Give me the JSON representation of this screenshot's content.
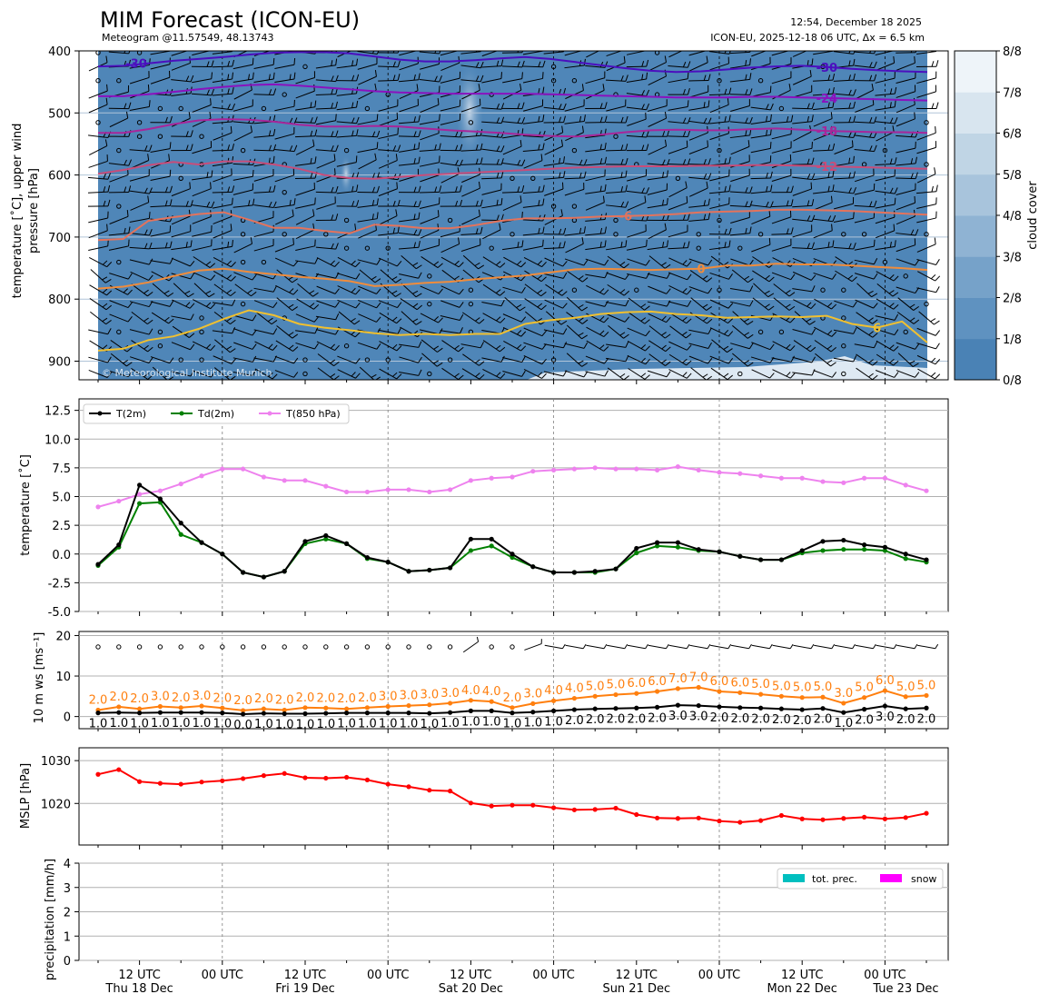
{
  "header": {
    "title": "MIM Forecast (ICON-EU)",
    "subtitle": "Meteogram @11.57549, 48.13743",
    "issued": "12:54, December 18 2025",
    "model_info": "ICON-EU, 2025-12-18 06 UTC, Δx = 6.5 km"
  },
  "colors": {
    "t2m": "#000000",
    "td2m": "#008000",
    "t850": "#ee82ee",
    "gust": "#ff7f0e",
    "mslp": "#ff0000",
    "tot_prec": "#00bfbf",
    "snow": "#ff00ff",
    "cloud_base": "#4f86b8"
  },
  "x_axis": {
    "ticks": [
      {
        "t": 6,
        "line1": "12 UTC",
        "line2": "Thu 18 Dec"
      },
      {
        "t": 18,
        "line1": "00 UTC",
        "line2": ""
      },
      {
        "t": 30,
        "line1": "12 UTC",
        "line2": "Fri 19 Dec"
      },
      {
        "t": 42,
        "line1": "00 UTC",
        "line2": ""
      },
      {
        "t": 54,
        "line1": "12 UTC",
        "line2": "Sat 20 Dec"
      },
      {
        "t": 66,
        "line1": "00 UTC",
        "line2": ""
      },
      {
        "t": 78,
        "line1": "12 UTC",
        "line2": "Sun 21 Dec"
      },
      {
        "t": 90,
        "line1": "00 UTC",
        "line2": ""
      },
      {
        "t": 102,
        "line1": "12 UTC",
        "line2": "Mon 22 Dec"
      },
      {
        "t": 114,
        "line1": "00 UTC",
        "line2": "Tue 23 Dec"
      }
    ],
    "midnights": [
      18,
      42,
      66,
      90,
      114
    ]
  },
  "chart_data": [
    {
      "type": "contour",
      "panel": "upper",
      "ylabel": "temperature [˚C], upper wind\npressure [hPa]",
      "y_ticks": [
        400,
        500,
        600,
        700,
        800,
        900
      ],
      "ylim": [
        930,
        400
      ],
      "colorbar": {
        "label": "cloud cover",
        "levels": [
          "0/8",
          "1/8",
          "2/8",
          "3/8",
          "4/8",
          "5/8",
          "6/8",
          "7/8",
          "8/8"
        ]
      },
      "watermark": "© Meteorological Institute Munich",
      "isotherms": [
        {
          "label": "-30",
          "color": "#4b0fbe",
          "p": [
            425,
            424,
            420,
            416,
            413,
            410,
            406,
            403,
            402,
            402,
            404,
            409,
            414,
            417,
            417,
            415,
            412,
            410,
            413,
            418,
            423,
            428,
            432,
            434,
            433,
            430,
            427,
            425,
            424,
            426,
            429,
            431,
            433,
            434
          ]
        },
        {
          "label": "-24",
          "color": "#8a12be",
          "p": [
            473,
            473,
            470,
            466,
            462,
            458,
            455,
            454,
            456,
            459,
            462,
            465,
            467,
            468,
            469,
            469,
            469,
            469,
            470,
            471,
            472,
            473,
            474,
            475,
            475,
            475,
            474,
            474,
            475,
            476,
            477,
            478,
            479,
            480
          ]
        },
        {
          "label": "-18",
          "color": "#a8269a",
          "p": [
            532,
            532,
            526,
            518,
            512,
            510,
            511,
            514,
            519,
            522,
            522,
            521,
            522,
            525,
            528,
            530,
            532,
            535,
            537,
            538,
            535,
            531,
            528,
            527,
            528,
            528,
            526,
            525,
            527,
            529,
            530,
            531,
            531,
            532
          ]
        },
        {
          "label": "-12",
          "color": "#c84d7a",
          "p": [
            598,
            592,
            584,
            579,
            583,
            578,
            578,
            583,
            590,
            600,
            605,
            606,
            603,
            600,
            598,
            596,
            594,
            592,
            590,
            588,
            587,
            586,
            586,
            586,
            585,
            585,
            584,
            584,
            585,
            586,
            587,
            588,
            589,
            590
          ]
        },
        {
          "label": "-6",
          "color": "#e4735c",
          "p": [
            705,
            703,
            674,
            668,
            663,
            660,
            672,
            685,
            685,
            690,
            694,
            680,
            682,
            686,
            686,
            681,
            674,
            670,
            670,
            669,
            667,
            666,
            665,
            663,
            660,
            659,
            658,
            656,
            656,
            657,
            658,
            660,
            662,
            664
          ]
        },
        {
          "label": "0",
          "color": "#f08c3c",
          "p": [
            783,
            780,
            773,
            763,
            754,
            751,
            756,
            760,
            764,
            767,
            771,
            779,
            777,
            774,
            772,
            768,
            765,
            762,
            757,
            752,
            751,
            752,
            753,
            752,
            751,
            746,
            746,
            743,
            744,
            744,
            746,
            748,
            750,
            753
          ]
        },
        {
          "label": "6",
          "color": "#f0c030",
          "p": [
            883,
            880,
            866,
            860,
            848,
            832,
            818,
            826,
            840,
            846,
            850,
            855,
            858,
            856,
            858,
            856,
            856,
            840,
            834,
            830,
            824,
            821,
            820,
            824,
            826,
            830,
            829,
            828,
            829,
            827,
            840,
            846,
            836,
            870
          ]
        }
      ]
    },
    {
      "type": "line",
      "panel": "temperature",
      "ylabel": "temperature [˚C]",
      "y_ticks": [
        -5.0,
        -2.5,
        0.0,
        2.5,
        5.0,
        7.5,
        10.0,
        12.5
      ],
      "ylim": [
        -5.0,
        13.5
      ],
      "x_step_hours": 3,
      "x_start": 0,
      "legend": "upper-left",
      "series": [
        {
          "name": "T(2m)",
          "values": [
            -0.9,
            0.8,
            6.0,
            4.8,
            2.7,
            1.0,
            0.0,
            -1.6,
            -2.0,
            -1.5,
            1.1,
            1.6,
            0.9,
            -0.3,
            -0.7,
            -1.5,
            -1.4,
            -1.2,
            1.3,
            1.3,
            0.0,
            -1.1,
            -1.6,
            -1.6,
            -1.5,
            -1.3,
            0.5,
            1.0,
            1.0,
            0.4,
            0.2,
            -0.2,
            -0.5,
            -0.5,
            0.3,
            1.1,
            1.2,
            0.8,
            0.6,
            0.0,
            -0.5
          ]
        },
        {
          "name": "Td(2m)",
          "values": [
            -1.0,
            0.6,
            4.4,
            4.5,
            1.7,
            1.0,
            0.0,
            -1.6,
            -2.0,
            -1.5,
            0.9,
            1.3,
            0.9,
            -0.4,
            -0.7,
            -1.5,
            -1.4,
            -1.2,
            0.3,
            0.7,
            -0.3,
            -1.1,
            -1.6,
            -1.6,
            -1.6,
            -1.3,
            0.1,
            0.7,
            0.6,
            0.3,
            0.2,
            -0.2,
            -0.5,
            -0.5,
            0.1,
            0.3,
            0.4,
            0.4,
            0.3,
            -0.4,
            -0.7
          ]
        },
        {
          "name": "T(850 hPa)",
          "values": [
            4.1,
            4.6,
            5.2,
            5.5,
            6.1,
            6.8,
            7.4,
            7.4,
            6.7,
            6.4,
            6.4,
            5.9,
            5.4,
            5.4,
            5.6,
            5.6,
            5.4,
            5.6,
            6.4,
            6.6,
            6.7,
            7.2,
            7.3,
            7.4,
            7.5,
            7.4,
            7.4,
            7.3,
            7.6,
            7.3,
            7.1,
            7.0,
            6.8,
            6.6,
            6.6,
            6.3,
            6.2,
            6.6,
            6.6,
            6.0,
            5.5
          ]
        }
      ]
    },
    {
      "type": "line",
      "panel": "wind10m",
      "ylabel": "10 m ws [ms⁻¹]",
      "y_ticks": [
        0,
        10,
        20
      ],
      "ylim": [
        -3,
        21
      ],
      "x_step_hours": 3,
      "x_start": 0,
      "series": [
        {
          "name": "gust",
          "values": [
            2.0,
            2.0,
            2.0,
            3.0,
            2.0,
            3.0,
            2.0,
            2.0,
            2.0,
            2.0,
            2.0,
            2.0,
            2.0,
            2.0,
            3.0,
            3.0,
            3.0,
            3.0,
            4.0,
            4.0,
            2.0,
            3.0,
            4.0,
            4.0,
            5.0,
            5.0,
            6.0,
            6.0,
            7.0,
            7.0,
            6.0,
            6.0,
            5.0,
            5.0,
            5.0,
            5.0,
            3.0,
            5.0,
            6.0,
            5.0,
            5.0
          ]
        },
        {
          "name": "mean",
          "values": [
            1.0,
            1.0,
            1.0,
            1.0,
            1.0,
            1.0,
            1.0,
            0.0,
            1.0,
            1.0,
            1.0,
            1.0,
            1.0,
            1.0,
            1.0,
            1.0,
            1.0,
            1.0,
            1.0,
            1.0,
            1.0,
            1.0,
            1.0,
            2.0,
            2.0,
            2.0,
            2.0,
            2.0,
            3.0,
            3.0,
            2.0,
            2.0,
            2.0,
            2.0,
            2.0,
            2.0,
            1.0,
            2.0,
            3.0,
            2.0,
            2.0
          ]
        },
        {
          "name": "gust_plotted",
          "values": [
            1.6,
            2.4,
            1.9,
            2.5,
            2.2,
            2.6,
            2.1,
            1.5,
            1.9,
            1.6,
            2.2,
            2.1,
            1.9,
            2.2,
            2.5,
            2.7,
            2.9,
            3.3,
            4.0,
            3.7,
            2.2,
            3.2,
            3.9,
            4.5,
            5.0,
            5.4,
            5.7,
            6.2,
            6.9,
            7.2,
            6.2,
            5.9,
            5.5,
            5.0,
            4.7,
            4.8,
            3.3,
            4.7,
            6.4,
            4.9,
            5.2
          ]
        },
        {
          "name": "mean_plotted",
          "values": [
            0.9,
            1.0,
            0.9,
            1.0,
            1.0,
            1.0,
            0.9,
            0.6,
            0.8,
            0.7,
            0.7,
            0.8,
            0.9,
            0.9,
            0.9,
            0.9,
            0.8,
            1.0,
            1.4,
            1.4,
            0.9,
            1.1,
            1.4,
            1.7,
            1.9,
            2.0,
            2.1,
            2.3,
            2.8,
            2.7,
            2.4,
            2.2,
            2.1,
            1.9,
            1.7,
            2.0,
            1.0,
            1.8,
            2.6,
            1.9,
            2.1
          ]
        }
      ]
    },
    {
      "type": "line",
      "panel": "mslp",
      "ylabel": "MSLP [hPa]",
      "y_ticks": [
        1020,
        1030
      ],
      "ylim": [
        1010.3,
        1033.0
      ],
      "x_step_hours": 3,
      "x_start": 0,
      "series": [
        {
          "name": "MSLP",
          "values": [
            1026.8,
            1027.9,
            1025.1,
            1024.7,
            1024.5,
            1025.0,
            1025.3,
            1025.8,
            1026.5,
            1027.0,
            1026.0,
            1025.9,
            1026.1,
            1025.5,
            1024.5,
            1023.9,
            1023.1,
            1022.9,
            1020.1,
            1019.4,
            1019.6,
            1019.6,
            1019.0,
            1018.5,
            1018.6,
            1018.9,
            1017.4,
            1016.6,
            1016.5,
            1016.6,
            1015.9,
            1015.6,
            1016.0,
            1017.2,
            1016.4,
            1016.2,
            1016.5,
            1016.8,
            1016.4,
            1016.7,
            1017.7
          ]
        }
      ]
    },
    {
      "type": "bar",
      "panel": "precipitation",
      "ylabel": "precipitation [mm/h]",
      "y_ticks": [
        0,
        1,
        2,
        3,
        4
      ],
      "ylim": [
        0,
        4
      ],
      "legend": "upper-right",
      "series": [
        {
          "name": "tot. prec.",
          "values": []
        },
        {
          "name": "snow",
          "values": []
        }
      ]
    }
  ]
}
